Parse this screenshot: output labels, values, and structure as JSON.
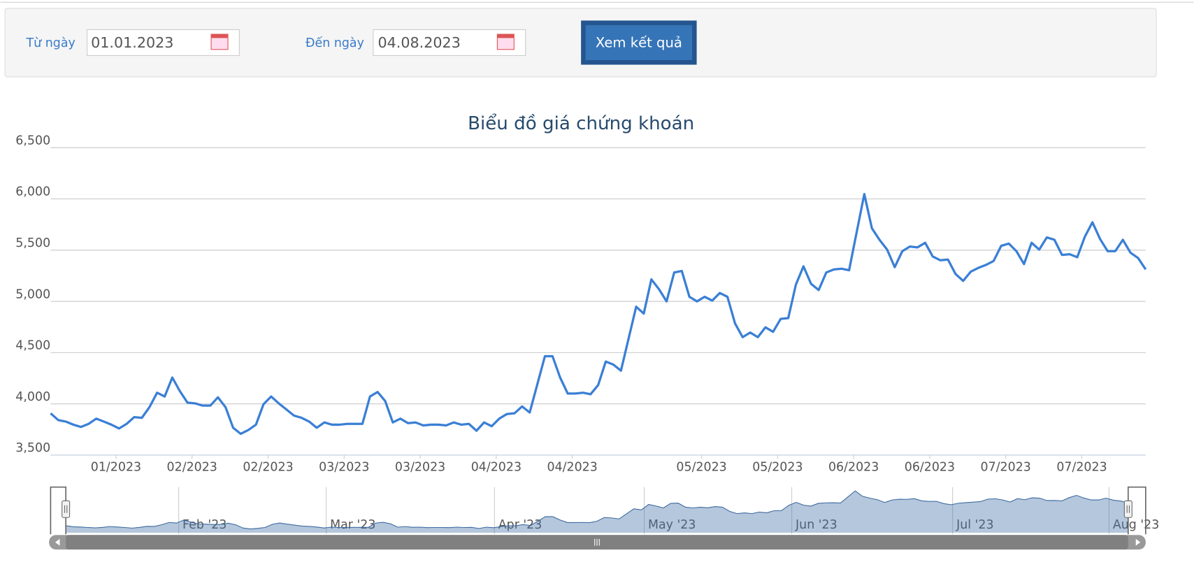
{
  "form": {
    "from_label": "Từ ngày",
    "from_value": "01.01.2023",
    "to_label": "Đến ngày",
    "to_value": "04.08.2023",
    "button": "Xem kết quả"
  },
  "chart_data": {
    "type": "line",
    "title": "Biểu đồ giá chứng khoán",
    "color": "#3a7fd5",
    "grid": true,
    "values": [
      3908,
      3842,
      3827,
      3797,
      3775,
      3805,
      3856,
      3827,
      3797,
      3760,
      3805,
      3871,
      3864,
      3968,
      4109,
      4072,
      4257,
      4124,
      4012,
      4005,
      3983,
      3983,
      4064,
      3968,
      3767,
      3708,
      3745,
      3797,
      3997,
      4072,
      4005,
      3946,
      3886,
      3864,
      3827,
      3767,
      3819,
      3797,
      3797,
      3805,
      3805,
      3805,
      4072,
      4116,
      4027,
      3819,
      3856,
      3812,
      3819,
      3790,
      3797,
      3797,
      3790,
      3819,
      3797,
      3805,
      3738,
      3819,
      3782,
      3856,
      3901,
      3908,
      3975,
      3916,
      4190,
      4465,
      4465,
      4257,
      4101,
      4101,
      4109,
      4094,
      4183,
      4413,
      4383,
      4324,
      4636,
      4948,
      4881,
      5215,
      5119,
      5000,
      5282,
      5297,
      5045,
      5000,
      5045,
      5008,
      5082,
      5045,
      4785,
      4651,
      4696,
      4651,
      4747,
      4703,
      4829,
      4837,
      5163,
      5342,
      5171,
      5111,
      5282,
      5312,
      5319,
      5304,
      5676,
      6047,
      5713,
      5601,
      5505,
      5334,
      5490,
      5535,
      5527,
      5572,
      5438,
      5401,
      5408,
      5267,
      5200,
      5290,
      5327,
      5356,
      5394,
      5542,
      5564,
      5490,
      5364,
      5572,
      5505,
      5624,
      5601,
      5453,
      5460,
      5431,
      5631,
      5772,
      5609,
      5490,
      5490,
      5601,
      5475,
      5423,
      5312
    ],
    "ylim": [
      3500,
      6500
    ],
    "yticks": [
      {
        "value": 3500,
        "label": "3,500"
      },
      {
        "value": 4000,
        "label": "4,000"
      },
      {
        "value": 4500,
        "label": "4,500"
      },
      {
        "value": 5000,
        "label": "5,000"
      },
      {
        "value": 5500,
        "label": "5,500"
      },
      {
        "value": 6000,
        "label": "6,000"
      },
      {
        "value": 6500,
        "label": "6,500"
      }
    ],
    "xlim": [
      0,
      144
    ],
    "xticks": [
      {
        "value": 8.6,
        "label": "01/2023"
      },
      {
        "value": 18.6,
        "label": "02/2023"
      },
      {
        "value": 28.6,
        "label": "02/2023"
      },
      {
        "value": 38.6,
        "label": "03/2023"
      },
      {
        "value": 48.6,
        "label": "03/2023"
      },
      {
        "value": 58.6,
        "label": "04/2023"
      },
      {
        "value": 68.6,
        "label": "04/2023"
      },
      {
        "value": 85.6,
        "label": "05/2023"
      },
      {
        "value": 95.6,
        "label": "05/2023"
      },
      {
        "value": 105.6,
        "label": "06/2023"
      },
      {
        "value": 115.6,
        "label": "06/2023"
      },
      {
        "value": 125.6,
        "label": "07/2023"
      },
      {
        "value": 135.6,
        "label": "07/2023"
      }
    ],
    "navigator": {
      "xticks": [
        {
          "value": 15.3,
          "label": "Feb '23"
        },
        {
          "value": 35.3,
          "label": "Mar '23"
        },
        {
          "value": 58.1,
          "label": "Apr '23"
        },
        {
          "value": 78.4,
          "label": "May '23"
        },
        {
          "value": 98.4,
          "label": "Jun '23"
        },
        {
          "value": 120.2,
          "label": "Jul '23"
        },
        {
          "value": 141.4,
          "label": "Aug '23"
        }
      ]
    }
  }
}
